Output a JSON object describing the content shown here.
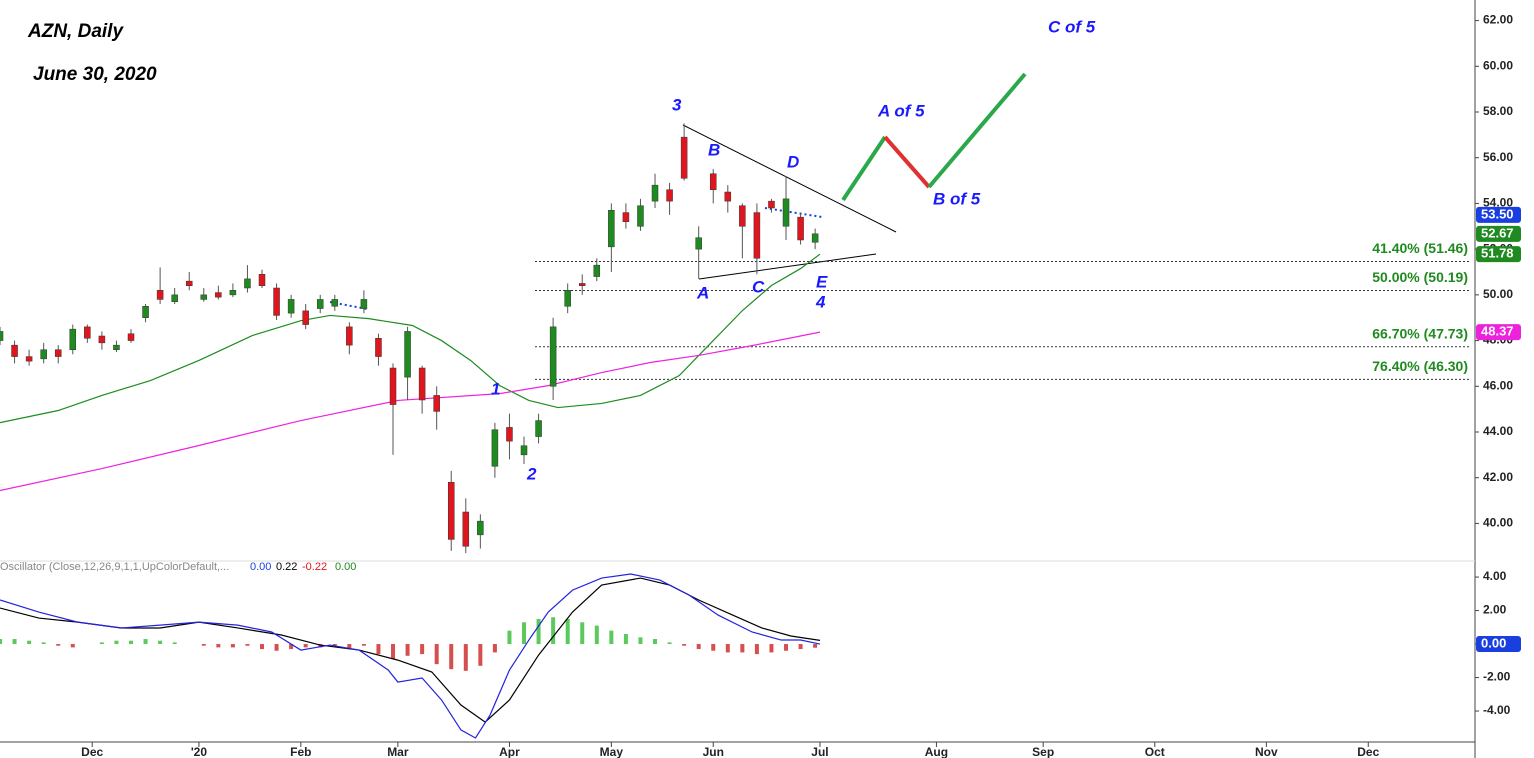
{
  "chart_data": [
    {
      "type": "candlestick",
      "title": "AZN, Daily",
      "subtitle": "June 30, 2020",
      "up_color": "#1f8a1f",
      "down_color": "#e0161e",
      "x": [
        0,
        3,
        6,
        9,
        12,
        15,
        18,
        21,
        24,
        27,
        30,
        33,
        36,
        39,
        42,
        45,
        48,
        51,
        54,
        57,
        60,
        63,
        66,
        69,
        72,
        75,
        78,
        81,
        84,
        87,
        90,
        93,
        96,
        99,
        102,
        105,
        108,
        111,
        114,
        117,
        120,
        123,
        126,
        129,
        132,
        135,
        138,
        141,
        144,
        147,
        150,
        153,
        156,
        159,
        162,
        165,
        168
      ],
      "open": [
        48.0,
        47.8,
        47.3,
        47.2,
        47.6,
        47.6,
        48.6,
        48.2,
        47.6,
        48.3,
        49.0,
        50.2,
        49.7,
        50.6,
        49.8,
        50.1,
        50.0,
        50.3,
        50.9,
        50.3,
        49.2,
        49.3,
        49.4,
        49.5,
        48.6,
        49.4,
        48.1,
        46.8,
        46.4,
        46.8,
        45.6,
        41.8,
        40.5,
        39.5,
        42.5,
        44.2,
        43.0,
        43.8,
        46.0,
        49.5,
        50.5,
        50.8,
        52.1,
        53.6,
        53.0,
        54.1,
        54.6,
        56.9,
        52.0,
        55.3,
        54.5,
        53.9,
        53.6,
        54.1,
        53.0,
        53.4,
        52.3
      ],
      "high": [
        48.6,
        48.0,
        47.6,
        47.9,
        47.8,
        48.7,
        48.7,
        48.4,
        48.0,
        48.5,
        49.6,
        51.2,
        50.3,
        51.0,
        50.3,
        50.4,
        50.5,
        51.3,
        51.1,
        50.5,
        50.0,
        49.6,
        50.0,
        50.0,
        48.8,
        50.2,
        48.3,
        47.0,
        48.6,
        46.9,
        46.0,
        42.3,
        41.1,
        40.4,
        44.4,
        44.8,
        43.8,
        44.8,
        49.0,
        50.5,
        50.9,
        51.6,
        54.0,
        54.0,
        54.2,
        55.3,
        54.9,
        57.5,
        53.0,
        55.5,
        54.8,
        54.0,
        54.0,
        54.2,
        55.2,
        53.6,
        52.9
      ],
      "low": [
        47.8,
        47.0,
        46.9,
        47.0,
        47.0,
        47.4,
        47.9,
        47.6,
        47.5,
        47.9,
        48.8,
        49.6,
        49.6,
        50.2,
        49.7,
        49.8,
        49.9,
        50.1,
        50.3,
        48.9,
        49.0,
        48.5,
        49.2,
        49.3,
        47.4,
        49.2,
        46.9,
        43.0,
        45.4,
        44.8,
        44.1,
        38.8,
        38.7,
        38.9,
        42.0,
        42.8,
        42.6,
        43.5,
        45.4,
        49.2,
        50.0,
        50.6,
        51.0,
        52.9,
        52.8,
        53.8,
        53.5,
        55.0,
        50.7,
        54.0,
        53.6,
        51.6,
        50.9,
        53.6,
        52.4,
        52.2,
        52.0
      ],
      "close": [
        48.4,
        47.3,
        47.1,
        47.6,
        47.3,
        48.5,
        48.1,
        47.9,
        47.8,
        48.0,
        49.5,
        49.8,
        50.0,
        50.4,
        50.0,
        49.9,
        50.2,
        50.7,
        50.4,
        49.1,
        49.8,
        48.7,
        49.8,
        49.8,
        47.8,
        49.8,
        47.3,
        45.2,
        48.4,
        45.4,
        44.9,
        39.3,
        39.0,
        40.1,
        44.1,
        43.6,
        43.4,
        44.5,
        48.6,
        50.2,
        50.4,
        51.3,
        53.7,
        53.2,
        53.9,
        54.8,
        54.1,
        55.1,
        52.5,
        54.6,
        54.1,
        53.0,
        51.6,
        53.8,
        54.2,
        52.4,
        52.67
      ],
      "overlays": [
        {
          "color": "#1e8c1e",
          "x": [
            0,
            12,
            21,
            31,
            41,
            52,
            62,
            68,
            76,
            85,
            91,
            97,
            103,
            109,
            115,
            124,
            132,
            140,
            146,
            153,
            159,
            165,
            169
          ],
          "values": [
            44.41,
            44.94,
            45.6,
            46.25,
            47.13,
            48.22,
            48.87,
            49.1,
            48.96,
            48.66,
            48.0,
            47.13,
            46.03,
            45.38,
            45.07,
            45.25,
            45.6,
            46.47,
            47.78,
            49.31,
            50.41,
            51.15,
            51.78
          ]
        },
        {
          "color": "#ee22dd",
          "x": [
            0,
            21,
            41,
            62,
            82,
            103,
            113,
            124,
            134,
            144,
            155,
            169
          ],
          "values": [
            41.44,
            42.4,
            43.41,
            44.5,
            45.38,
            45.68,
            46.03,
            46.6,
            47.04,
            47.35,
            47.78,
            48.37
          ]
        }
      ],
      "xlim": [
        0,
        304
      ],
      "xticks": [
        {
          "value": 19,
          "label": "Dec"
        },
        {
          "value": 41,
          "label": "'20"
        },
        {
          "value": 62,
          "label": "Feb"
        },
        {
          "value": 82,
          "label": "Mar"
        },
        {
          "value": 105,
          "label": "Apr"
        },
        {
          "value": 126,
          "label": "May"
        },
        {
          "value": 147,
          "label": "Jun"
        },
        {
          "value": 169,
          "label": "Jul"
        },
        {
          "value": 193,
          "label": "Aug"
        },
        {
          "value": 215,
          "label": "Sep"
        },
        {
          "value": 238,
          "label": "Oct"
        },
        {
          "value": 261,
          "label": "Nov"
        },
        {
          "value": 282,
          "label": "Dec"
        }
      ],
      "ylim": [
        38.4,
        62.9
      ],
      "yticks": [
        {
          "value": 40,
          "label": "40.00"
        },
        {
          "value": 42,
          "label": "42.00"
        },
        {
          "value": 44,
          "label": "44.00"
        },
        {
          "value": 46,
          "label": "46.00"
        },
        {
          "value": 48,
          "label": "48.00"
        },
        {
          "value": 50,
          "label": "50.00"
        },
        {
          "value": 52,
          "label": "52.00"
        },
        {
          "value": 54,
          "label": "54.00"
        },
        {
          "value": 56,
          "label": "56.00"
        },
        {
          "value": 58,
          "label": "58.00"
        },
        {
          "value": 60,
          "label": "60.00"
        },
        {
          "value": 62,
          "label": "62.00"
        }
      ],
      "fib_levels": [
        {
          "value": 51.46,
          "label": "41.40% (51.46)"
        },
        {
          "value": 50.19,
          "label": "50.00% (50.19)"
        },
        {
          "value": 47.73,
          "label": "66.70% (47.73)"
        },
        {
          "value": 46.3,
          "label": "76.40% (46.30)"
        }
      ],
      "price_tags": [
        {
          "value": 53.5,
          "label": "53.50",
          "color": "#1a3fe0"
        },
        {
          "value": 52.67,
          "label": "52.67",
          "color": "#1f8a1f"
        },
        {
          "value": 51.78,
          "label": "51.78",
          "color": "#1f8a1f"
        },
        {
          "value": 48.37,
          "label": "48.37",
          "color": "#ee22dd"
        }
      ],
      "annotations": [
        "3",
        "B",
        "D",
        "A",
        "C",
        "E",
        "4",
        "1",
        "2",
        "A of 5",
        "B of 5",
        "C of 5"
      ]
    },
    {
      "type": "macd",
      "title": "Oscillator (Close,12,26,9,1,1,UpColorDefault,...",
      "legend_values": [
        {
          "value": 0,
          "label": "0.00",
          "color": "#1a3fe0"
        },
        {
          "value": 0.22,
          "label": "0.22",
          "color": "#000000"
        },
        {
          "value": -0.22,
          "label": "-0.22",
          "color": "#e0161e"
        },
        {
          "value": 0,
          "label": "0.00",
          "color": "#1f8a1f"
        }
      ],
      "macd": {
        "color": "#2323e0",
        "x": [
          0,
          8,
          16,
          25,
          33,
          41,
          49,
          56,
          62,
          68,
          74,
          80,
          82,
          87,
          91,
          95,
          98,
          101,
          105,
          109,
          113,
          118,
          124,
          130,
          136,
          142,
          148,
          155,
          161,
          165,
          169
        ],
        "values": [
          2.63,
          1.91,
          1.31,
          0.96,
          1.13,
          1.31,
          1.13,
          0.72,
          -0.36,
          -0.06,
          -0.36,
          -1.55,
          -2.27,
          -2.03,
          -3.34,
          -5.13,
          -5.61,
          -4.24,
          -1.55,
          0.24,
          1.91,
          3.22,
          3.94,
          4.18,
          3.82,
          2.93,
          1.73,
          0.72,
          0.24,
          0.24,
          0.0
        ]
      },
      "signal": {
        "color": "#000000",
        "x": [
          0,
          8,
          16,
          25,
          33,
          41,
          49,
          58,
          66,
          74,
          82,
          89,
          95,
          100,
          105,
          111,
          118,
          124,
          132,
          138,
          144,
          151,
          157,
          163,
          169
        ],
        "values": [
          2.15,
          1.55,
          1.31,
          0.96,
          0.96,
          1.31,
          0.96,
          0.54,
          -0.06,
          -0.36,
          -0.96,
          -1.67,
          -3.64,
          -4.66,
          -3.34,
          -0.66,
          1.91,
          3.52,
          3.94,
          3.52,
          2.63,
          1.73,
          0.96,
          0.48,
          0.22
        ]
      },
      "histogram": {
        "up_color": "#33bb33",
        "down_color": "#cc2222",
        "x": [
          0,
          3,
          6,
          9,
          12,
          15,
          18,
          21,
          24,
          27,
          30,
          33,
          36,
          39,
          42,
          45,
          48,
          51,
          54,
          57,
          60,
          63,
          66,
          69,
          72,
          75,
          78,
          81,
          84,
          87,
          90,
          93,
          96,
          99,
          102,
          105,
          108,
          111,
          114,
          117,
          120,
          123,
          126,
          129,
          132,
          135,
          138,
          141,
          144,
          147,
          150,
          153,
          156,
          159,
          162,
          165,
          168
        ],
        "values": [
          0.3,
          0.3,
          0.2,
          0.1,
          -0.1,
          -0.2,
          0,
          0.1,
          0.2,
          0.2,
          0.3,
          0.2,
          0.1,
          0,
          -0.1,
          -0.2,
          -0.2,
          -0.1,
          -0.3,
          -0.4,
          -0.3,
          -0.2,
          -0.2,
          -0.1,
          -0.3,
          -0.1,
          -0.6,
          -0.9,
          -0.7,
          -0.6,
          -1.2,
          -1.5,
          -1.6,
          -1.3,
          -0.5,
          0.8,
          1.3,
          1.5,
          1.6,
          1.5,
          1.3,
          1.1,
          0.8,
          0.6,
          0.4,
          0.3,
          0.1,
          -0.1,
          -0.3,
          -0.4,
          -0.5,
          -0.5,
          -0.6,
          -0.5,
          -0.4,
          -0.3,
          -0.22
        ]
      },
      "ylim": [
        -5.73,
        4.72
      ],
      "yticks": [
        {
          "value": -4,
          "label": "-4.00"
        },
        {
          "value": -2,
          "label": "-2.00"
        },
        {
          "value": 0,
          "label": "0.00"
        },
        {
          "value": 2,
          "label": "2.00"
        },
        {
          "value": 4,
          "label": "4.00"
        }
      ],
      "zero_tag": {
        "value": 0,
        "label": "0.00",
        "color": "#1a3fe0"
      }
    }
  ]
}
